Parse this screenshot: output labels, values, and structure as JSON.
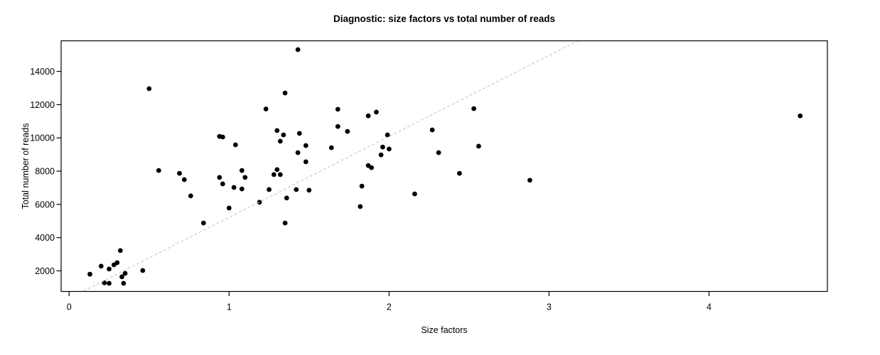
{
  "chart_data": {
    "type": "scatter",
    "title": "Diagnostic: size factors vs total number of reads",
    "xlabel": "Size factors",
    "ylabel": "Total number of reads",
    "xlim": [
      -0.05,
      4.74
    ],
    "ylim": [
      760,
      15840
    ],
    "x_ticks": [
      0,
      1,
      2,
      3,
      4
    ],
    "y_ticks": [
      2000,
      4000,
      6000,
      8000,
      10000,
      12000,
      14000
    ],
    "grid": false,
    "legend": null,
    "point_color": "#000000",
    "point_radius": 3.4,
    "reference_line": {
      "style": "dashed",
      "color": "#c6c6c6",
      "x": [
        0.09,
        3.18
      ],
      "y": [
        780,
        15840
      ]
    },
    "points": [
      [
        0.5,
        12960
      ],
      [
        0.94,
        10090
      ],
      [
        0.96,
        10050
      ],
      [
        1.04,
        9580
      ],
      [
        1.43,
        15310
      ],
      [
        1.35,
        12700
      ],
      [
        1.23,
        11740
      ],
      [
        1.68,
        11720
      ],
      [
        1.87,
        11330
      ],
      [
        1.92,
        11550
      ],
      [
        1.3,
        10440
      ],
      [
        1.34,
        10180
      ],
      [
        1.32,
        9800
      ],
      [
        1.44,
        10270
      ],
      [
        1.48,
        9540
      ],
      [
        1.43,
        9110
      ],
      [
        1.48,
        8560
      ],
      [
        1.68,
        10690
      ],
      [
        1.74,
        10390
      ],
      [
        1.64,
        9410
      ],
      [
        1.99,
        10180
      ],
      [
        1.96,
        9450
      ],
      [
        2.0,
        9330
      ],
      [
        1.95,
        8980
      ],
      [
        1.87,
        8340
      ],
      [
        1.89,
        8210
      ],
      [
        2.27,
        10480
      ],
      [
        2.31,
        9110
      ],
      [
        2.53,
        11760
      ],
      [
        2.56,
        9500
      ],
      [
        4.57,
        11330
      ],
      [
        0.56,
        8040
      ],
      [
        0.69,
        7870
      ],
      [
        0.72,
        7490
      ],
      [
        0.76,
        6510
      ],
      [
        0.94,
        7620
      ],
      [
        0.96,
        7230
      ],
      [
        1.08,
        8040
      ],
      [
        1.1,
        7620
      ],
      [
        1.03,
        7020
      ],
      [
        1.08,
        6930
      ],
      [
        1.0,
        5780
      ],
      [
        0.84,
        4880
      ],
      [
        1.3,
        8090
      ],
      [
        1.28,
        7790
      ],
      [
        1.32,
        7790
      ],
      [
        1.25,
        6890
      ],
      [
        1.19,
        6130
      ],
      [
        1.36,
        6380
      ],
      [
        1.42,
        6890
      ],
      [
        1.5,
        6850
      ],
      [
        1.35,
        4880
      ],
      [
        1.83,
        7100
      ],
      [
        1.82,
        5870
      ],
      [
        2.16,
        6630
      ],
      [
        2.44,
        7870
      ],
      [
        2.88,
        7450
      ],
      [
        0.13,
        1800
      ],
      [
        0.2,
        2280
      ],
      [
        0.25,
        2110
      ],
      [
        0.28,
        2360
      ],
      [
        0.3,
        2490
      ],
      [
        0.32,
        3220
      ],
      [
        0.35,
        1850
      ],
      [
        0.46,
        2020
      ],
      [
        0.22,
        1280
      ],
      [
        0.25,
        1250
      ],
      [
        0.33,
        1640
      ],
      [
        0.34,
        1250
      ]
    ]
  }
}
